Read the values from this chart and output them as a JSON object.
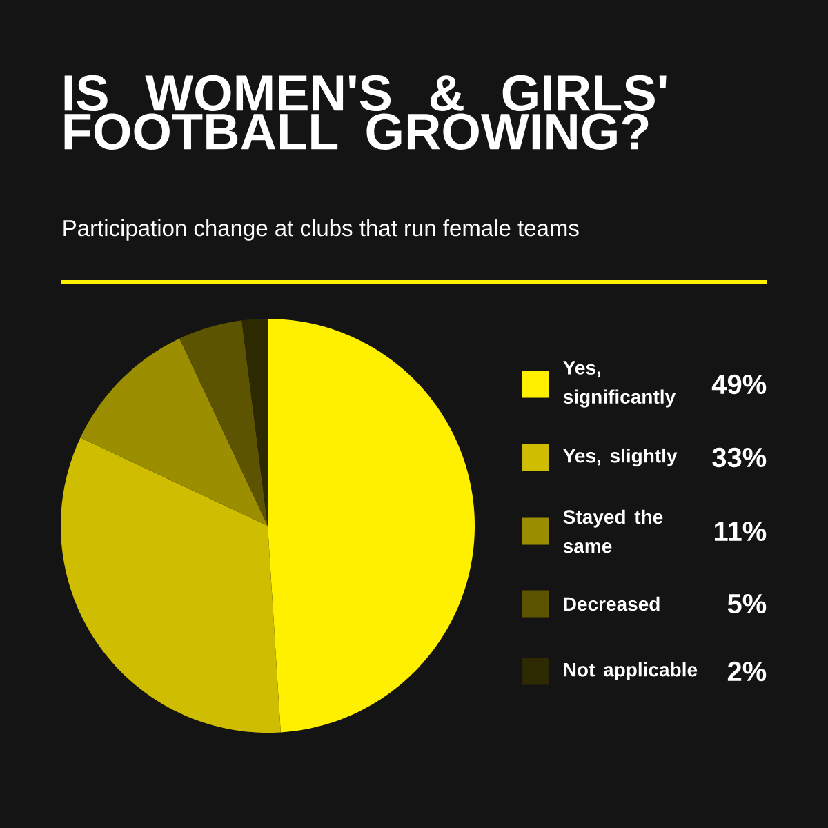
{
  "chart_data": {
    "type": "pie",
    "title": "IS WOMEN'S & GIRLS' FOOTBALL GROWING?",
    "subtitle": "Participation change at clubs that run female teams",
    "categories": [
      "Yes, significantly",
      "Yes, slightly",
      "Stayed the same",
      "Decreased",
      "Not applicable"
    ],
    "values": [
      49,
      33,
      11,
      5,
      2
    ],
    "colors": [
      "#fff000",
      "#cebd00",
      "#9b8e00",
      "#5c5400",
      "#2d2900"
    ],
    "value_labels": [
      "49%",
      "33%",
      "11%",
      "5%",
      "2%"
    ],
    "legend": "right"
  }
}
